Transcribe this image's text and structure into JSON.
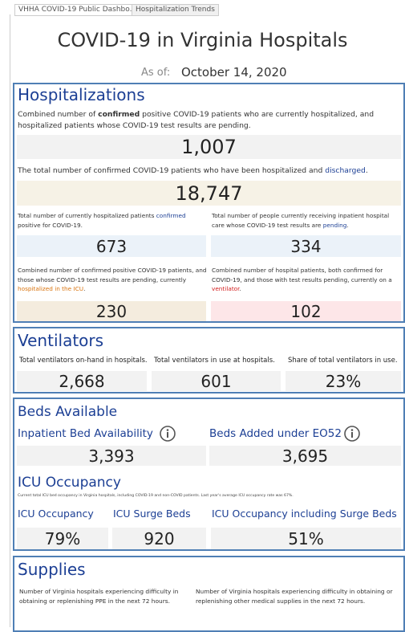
{
  "tabs": [
    "VHHA COVID-19 Public Dashbo...",
    "Hospitalization Trends"
  ],
  "header": {
    "title": "COVID-19 in Virginia Hospitals",
    "as_of_label": "As of:",
    "as_of_date": "October 14, 2020"
  },
  "hospitalizations": {
    "title": "Hospitalizations",
    "current": {
      "description": [
        "Combined number of ",
        "confirmed",
        " positive COVID-19 patients who are currently hospitalized, and hospitalized patients whose COVID-19 test results are pending."
      ],
      "value": "1,007"
    },
    "total": {
      "description": [
        "The total number of confirmed COVID-19 patients who have been hospitalized and ",
        "discharged",
        "."
      ],
      "value": "18,747"
    },
    "confirmed": {
      "description": [
        "Total number of currently hospitalized patients ",
        "confirmed",
        " positive for COVID-19."
      ],
      "value": "673"
    },
    "pending": {
      "description": [
        "Total number of people currently receiving inpatient hospital care whose COVID-19 test results are ",
        "pending",
        "."
      ],
      "value": "334"
    },
    "icu": {
      "description": [
        "Combined number of confirmed positive COVID-19 patients, and those whose COVID-19 test results are pending, currently ",
        "hospitalized in the ICU",
        "."
      ],
      "value": "230"
    },
    "ventilator": {
      "description": [
        "Combined number of hospital patients, both confirmed for COVID-19, and those with test results pending, currently on a ",
        "ventilator",
        "."
      ],
      "value": "102"
    }
  },
  "ventilators": {
    "title": "Ventilators",
    "items": [
      {
        "label": "Total ventilators on-hand in hospitals.",
        "value": "2,668"
      },
      {
        "label": "Total ventilators in use at hospitals.",
        "value": "601"
      },
      {
        "label": "Share of total ventilators in use.",
        "value": "23%"
      }
    ]
  },
  "beds": {
    "title": "Beds Available",
    "items": [
      {
        "label": "Inpatient Bed Availability",
        "value": "3,393"
      },
      {
        "label": "Beds Added under EO52",
        "value": "3,695"
      }
    ]
  },
  "icu_occupancy": {
    "title": "ICU Occupancy",
    "note": "Current total ICU bed occupancy in Virginia hospitals, including COVID-19 and non-COVID patients. Last year's average ICU occupancy rate was 67%.",
    "items": [
      {
        "label": "ICU Occupancy",
        "value": "79%"
      },
      {
        "label": "ICU Surge Beds",
        "value": "920"
      },
      {
        "label": "ICU Occupancy including Surge Beds",
        "value": "51%"
      }
    ]
  },
  "supplies": {
    "title": "Supplies",
    "items": [
      "Number of Virginia hospitals experiencing difficulty in obtaining or replenishing PPE in the next 72 hours.",
      "Number of Virginia hospitals experiencing difficulty in obtaining or replenishing other medical supplies in the next 72 hours."
    ]
  }
}
